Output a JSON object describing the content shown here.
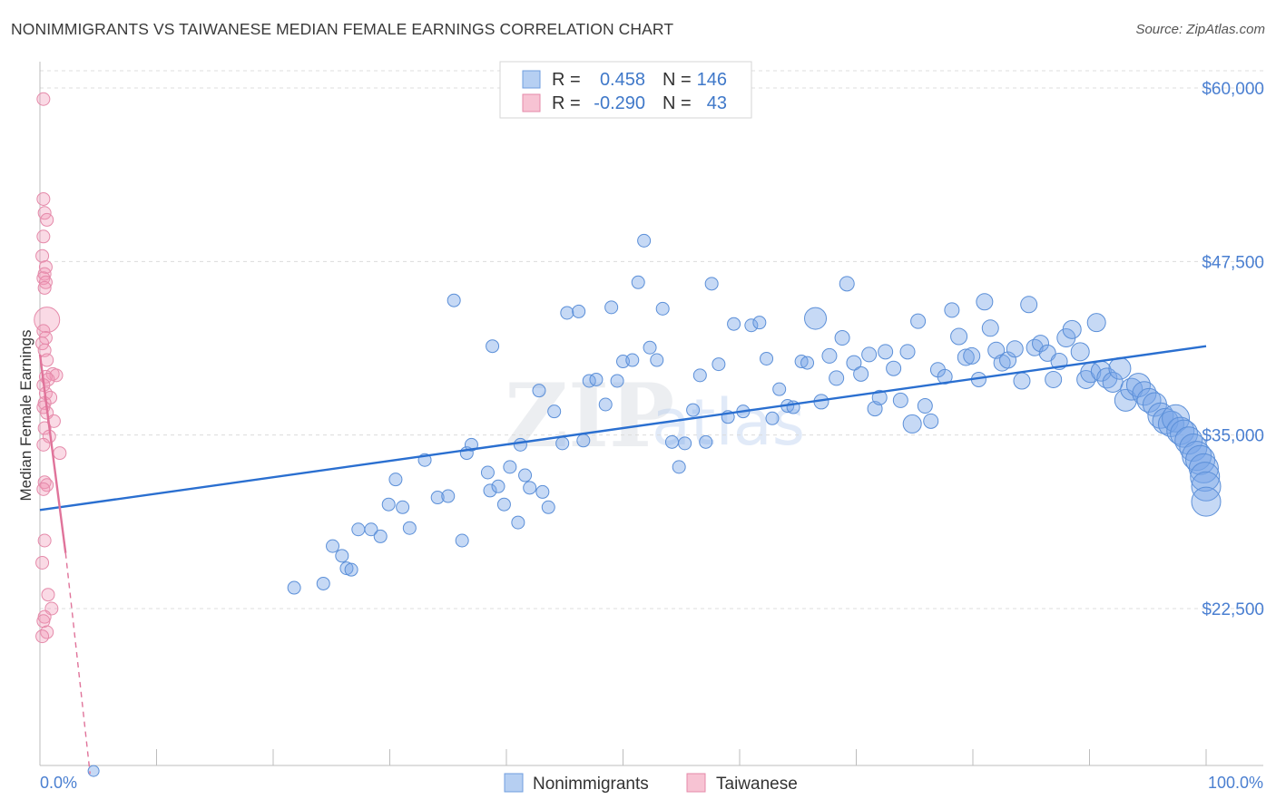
{
  "title": "NONIMMIGRANTS VS TAIWANESE MEDIAN FEMALE EARNINGS CORRELATION CHART",
  "source": "Source: ZipAtlas.com",
  "watermark": {
    "zip": "ZIP",
    "atlas": "atlas"
  },
  "colors": {
    "blue": "#4a7fd1",
    "blue_line": "#2a6fd0",
    "pink": "#e0739a"
  },
  "legend": {
    "rows": [
      {
        "r_label": "R =",
        "r_value": "0.458",
        "n_label": "N =",
        "n_value": "146"
      },
      {
        "r_label": "R =",
        "r_value": "-0.290",
        "n_label": "N =",
        "n_value": "43"
      }
    ]
  },
  "bottom_legend": [
    "Nonimmigrants",
    "Taiwanese"
  ],
  "chart_data": {
    "type": "scatter",
    "title": "NONIMMIGRANTS VS TAIWANESE MEDIAN FEMALE EARNINGS CORRELATION CHART",
    "xlabel": "",
    "ylabel": "Median Female Earnings",
    "xlim": [
      0,
      100
    ],
    "ylim": [
      10000,
      62000
    ],
    "x_tick_labels": [
      "0.0%",
      "100.0%"
    ],
    "y_ticks": [
      22500,
      35000,
      47500,
      60000
    ],
    "y_tick_labels": [
      "$22,500",
      "$35,000",
      "$47,500",
      "$60,000"
    ],
    "series": [
      {
        "name": "Nonimmigrants",
        "r": 0.458,
        "n": 146,
        "trend": {
          "x": [
            0,
            100
          ],
          "y": [
            29600,
            41400
          ]
        },
        "points": [
          [
            4.6,
            10800,
            6
          ],
          [
            21.8,
            24000,
            7
          ],
          [
            24.3,
            24300,
            7
          ],
          [
            25.1,
            27000,
            7
          ],
          [
            25.9,
            26300,
            7
          ],
          [
            26.3,
            25400,
            7
          ],
          [
            26.7,
            25300,
            7
          ],
          [
            27.3,
            28200,
            7
          ],
          [
            28.4,
            28200,
            7
          ],
          [
            29.2,
            27700,
            7
          ],
          [
            29.9,
            30000,
            7
          ],
          [
            30.5,
            31800,
            7
          ],
          [
            31.1,
            29800,
            7
          ],
          [
            31.7,
            28300,
            7
          ],
          [
            33.0,
            33200,
            7
          ],
          [
            34.1,
            30500,
            7
          ],
          [
            35.0,
            30600,
            7
          ],
          [
            35.5,
            44700,
            7
          ],
          [
            36.2,
            27400,
            7
          ],
          [
            36.6,
            33700,
            7
          ],
          [
            37.0,
            34300,
            7
          ],
          [
            38.4,
            32300,
            7
          ],
          [
            38.6,
            31000,
            7
          ],
          [
            38.8,
            41400,
            7
          ],
          [
            39.3,
            31300,
            7
          ],
          [
            39.8,
            30000,
            7
          ],
          [
            40.3,
            32700,
            7
          ],
          [
            41.0,
            28700,
            7
          ],
          [
            41.2,
            34300,
            7
          ],
          [
            41.6,
            32100,
            7
          ],
          [
            42.0,
            31200,
            7
          ],
          [
            42.8,
            38200,
            7
          ],
          [
            43.1,
            30900,
            7
          ],
          [
            43.6,
            29800,
            7
          ],
          [
            44.1,
            36700,
            7
          ],
          [
            44.8,
            34400,
            7
          ],
          [
            45.2,
            43800,
            7
          ],
          [
            46.2,
            43900,
            7
          ],
          [
            46.6,
            34600,
            7
          ],
          [
            47.1,
            38900,
            7
          ],
          [
            47.7,
            39000,
            7
          ],
          [
            48.5,
            37200,
            7
          ],
          [
            49.0,
            44200,
            7
          ],
          [
            49.5,
            38900,
            7
          ],
          [
            50.0,
            40300,
            7
          ],
          [
            50.8,
            40400,
            7
          ],
          [
            51.3,
            46000,
            7
          ],
          [
            51.8,
            49000,
            7
          ],
          [
            52.3,
            41300,
            7
          ],
          [
            52.9,
            40400,
            7
          ],
          [
            53.4,
            44100,
            7
          ],
          [
            54.2,
            34500,
            7
          ],
          [
            54.8,
            32700,
            7
          ],
          [
            55.3,
            34400,
            7
          ],
          [
            56.0,
            36800,
            7
          ],
          [
            56.6,
            39300,
            7
          ],
          [
            57.1,
            34500,
            7
          ],
          [
            57.6,
            45900,
            7
          ],
          [
            58.2,
            40100,
            7
          ],
          [
            59.0,
            36300,
            7
          ],
          [
            59.5,
            43000,
            7
          ],
          [
            60.3,
            36700,
            7
          ],
          [
            61.0,
            42900,
            7
          ],
          [
            61.7,
            43100,
            7
          ],
          [
            62.3,
            40500,
            7
          ],
          [
            62.8,
            36200,
            7
          ],
          [
            63.4,
            38300,
            7
          ],
          [
            64.1,
            37100,
            7
          ],
          [
            64.6,
            37000,
            7
          ],
          [
            65.3,
            40300,
            7
          ],
          [
            65.8,
            40200,
            7
          ],
          [
            66.5,
            43400,
            12
          ],
          [
            67.0,
            37400,
            8
          ],
          [
            67.7,
            40700,
            8
          ],
          [
            68.3,
            39100,
            8
          ],
          [
            68.8,
            42000,
            8
          ],
          [
            69.2,
            45900,
            8
          ],
          [
            69.8,
            40200,
            8
          ],
          [
            70.4,
            39400,
            8
          ],
          [
            71.1,
            40800,
            8
          ],
          [
            71.6,
            36900,
            8
          ],
          [
            72.0,
            37700,
            8
          ],
          [
            72.5,
            41000,
            8
          ],
          [
            73.2,
            39800,
            8
          ],
          [
            73.8,
            37500,
            8
          ],
          [
            74.4,
            41000,
            8
          ],
          [
            74.8,
            35800,
            10
          ],
          [
            75.3,
            43200,
            8
          ],
          [
            75.9,
            37100,
            8
          ],
          [
            76.4,
            36000,
            8
          ],
          [
            77.0,
            39700,
            8
          ],
          [
            77.6,
            39200,
            8
          ],
          [
            78.2,
            44000,
            8
          ],
          [
            78.8,
            42100,
            9
          ],
          [
            79.4,
            40600,
            9
          ],
          [
            79.9,
            40700,
            9
          ],
          [
            80.5,
            39000,
            8
          ],
          [
            81.0,
            44600,
            9
          ],
          [
            81.5,
            42700,
            9
          ],
          [
            82.0,
            41100,
            9
          ],
          [
            82.5,
            40200,
            9
          ],
          [
            83.0,
            40400,
            9
          ],
          [
            83.6,
            41200,
            9
          ],
          [
            84.2,
            38900,
            9
          ],
          [
            84.8,
            44400,
            9
          ],
          [
            85.3,
            41300,
            9
          ],
          [
            85.8,
            41600,
            9
          ],
          [
            86.4,
            40900,
            9
          ],
          [
            86.9,
            39000,
            9
          ],
          [
            87.4,
            40300,
            9
          ],
          [
            88.0,
            42000,
            10
          ],
          [
            88.5,
            42600,
            10
          ],
          [
            89.2,
            41000,
            10
          ],
          [
            89.7,
            39000,
            10
          ],
          [
            90.1,
            39500,
            11
          ],
          [
            90.6,
            43100,
            10
          ],
          [
            91.0,
            39600,
            11
          ],
          [
            91.5,
            39100,
            11
          ],
          [
            92.0,
            38800,
            11
          ],
          [
            92.6,
            39800,
            12
          ],
          [
            93.1,
            37500,
            12
          ],
          [
            93.6,
            38300,
            12
          ],
          [
            94.2,
            38600,
            13
          ],
          [
            94.7,
            38000,
            13
          ],
          [
            95.1,
            37500,
            13
          ],
          [
            95.6,
            37200,
            13
          ],
          [
            96.1,
            36400,
            14
          ],
          [
            96.5,
            36000,
            14
          ],
          [
            97.0,
            35800,
            14
          ],
          [
            97.4,
            36200,
            15
          ],
          [
            97.8,
            35300,
            15
          ],
          [
            98.1,
            35100,
            15
          ],
          [
            98.5,
            34600,
            15
          ],
          [
            98.9,
            34100,
            15
          ],
          [
            99.2,
            33500,
            16
          ],
          [
            99.5,
            33200,
            16
          ],
          [
            99.8,
            32600,
            16
          ],
          [
            99.9,
            32000,
            16
          ],
          [
            100.0,
            31300,
            16
          ],
          [
            100.0,
            30200,
            16
          ]
        ]
      },
      {
        "name": "Taiwanese",
        "r": -0.29,
        "n": 43,
        "trend": {
          "x": [
            0,
            2.2
          ],
          "y": [
            40800,
            26500
          ]
        },
        "trend_extension": {
          "x": [
            2.2,
            4.3
          ],
          "y": [
            26500,
            10600
          ]
        },
        "points": [
          [
            0.3,
            59200,
            7
          ],
          [
            0.3,
            52000,
            7
          ],
          [
            0.4,
            51000,
            7
          ],
          [
            0.6,
            50500,
            7
          ],
          [
            0.3,
            49300,
            7
          ],
          [
            0.2,
            47900,
            7
          ],
          [
            0.5,
            47100,
            7
          ],
          [
            0.4,
            46600,
            7
          ],
          [
            0.3,
            46300,
            7
          ],
          [
            0.5,
            46000,
            7
          ],
          [
            0.4,
            45600,
            7
          ],
          [
            0.6,
            43300,
            14
          ],
          [
            0.3,
            42500,
            7
          ],
          [
            0.5,
            42000,
            7
          ],
          [
            0.2,
            41600,
            7
          ],
          [
            0.4,
            41100,
            7
          ],
          [
            0.6,
            40400,
            7
          ],
          [
            1.1,
            39400,
            7
          ],
          [
            1.4,
            39300,
            7
          ],
          [
            0.5,
            39200,
            7
          ],
          [
            0.7,
            39000,
            7
          ],
          [
            0.3,
            38600,
            7
          ],
          [
            0.5,
            38000,
            7
          ],
          [
            0.9,
            37700,
            7
          ],
          [
            0.4,
            37300,
            7
          ],
          [
            0.3,
            37000,
            7
          ],
          [
            0.6,
            36600,
            7
          ],
          [
            1.2,
            36000,
            7
          ],
          [
            0.4,
            35500,
            7
          ],
          [
            0.8,
            34900,
            7
          ],
          [
            0.3,
            34300,
            7
          ],
          [
            1.7,
            33700,
            7
          ],
          [
            0.4,
            31600,
            7
          ],
          [
            0.6,
            31400,
            7
          ],
          [
            0.3,
            31100,
            7
          ],
          [
            0.4,
            27400,
            7
          ],
          [
            0.2,
            25800,
            7
          ],
          [
            0.7,
            23500,
            7
          ],
          [
            1.0,
            22500,
            7
          ],
          [
            0.4,
            21900,
            7
          ],
          [
            0.3,
            21600,
            7
          ],
          [
            0.6,
            20800,
            7
          ],
          [
            0.2,
            20500,
            7
          ]
        ]
      }
    ]
  }
}
